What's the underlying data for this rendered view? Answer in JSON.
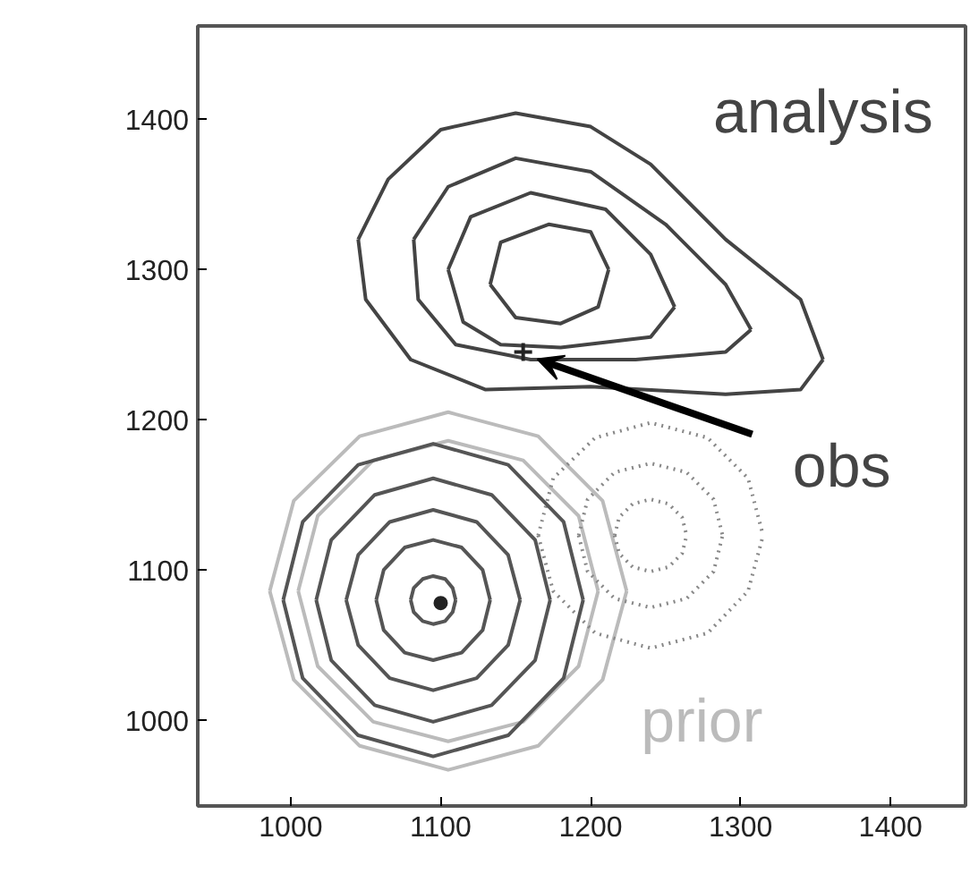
{
  "chart_data": {
    "type": "line",
    "xlim": [
      938,
      1450
    ],
    "ylim": [
      943,
      1462
    ],
    "xticks": [
      1000,
      1100,
      1200,
      1300,
      1400
    ],
    "yticks": [
      1000,
      1100,
      1200,
      1300,
      1400
    ],
    "grid": false,
    "line_style": "solid",
    "series": [
      {
        "name": "analysis",
        "color": "#444444",
        "x": [
          1045,
          1065,
          1100,
          1150,
          1200,
          1240,
          1290,
          1340,
          1355
        ],
        "values": [
          1320,
          1360,
          1393,
          1404,
          1395,
          1370,
          1320,
          1280,
          1240
        ]
      },
      {
        "color": "#444444",
        "x": [
          1045,
          1050,
          1080,
          1130,
          1200,
          1290,
          1340,
          1355
        ],
        "values": [
          1320,
          1280,
          1240,
          1220,
          1222,
          1217,
          1220,
          1240
        ]
      },
      {
        "color": "#444444",
        "x": [
          1082,
          1105,
          1150,
          1200,
          1250,
          1290,
          1307
        ],
        "values": [
          1320,
          1355,
          1374,
          1365,
          1330,
          1290,
          1260
        ]
      },
      {
        "color": "#444444",
        "x": [
          1082,
          1085,
          1110,
          1160,
          1230,
          1290,
          1307
        ],
        "values": [
          1320,
          1280,
          1250,
          1240,
          1240,
          1245,
          1260
        ]
      },
      {
        "color": "#444444",
        "x": [
          1105,
          1120,
          1160,
          1210,
          1240,
          1256
        ],
        "values": [
          1300,
          1335,
          1351,
          1340,
          1310,
          1275
        ]
      },
      {
        "color": "#444444",
        "x": [
          1105,
          1115,
          1140,
          1180,
          1240,
          1256
        ],
        "values": [
          1300,
          1265,
          1250,
          1248,
          1255,
          1275
        ]
      },
      {
        "color": "#444444",
        "x": [
          1133,
          1140,
          1172,
          1200,
          1212
        ],
        "values": [
          1290,
          1318,
          1330,
          1325,
          1300
        ]
      },
      {
        "color": "#444444",
        "x": [
          1133,
          1150,
          1180,
          1205,
          1212
        ],
        "values": [
          1290,
          1268,
          1264,
          1275,
          1300
        ]
      },
      {
        "color": "#bbbbbb",
        "x": [
          986,
          1002,
          1046,
          1105,
          1165,
          1208,
          1224
        ],
        "values": [
          1086,
          1146,
          1189,
          1205,
          1189,
          1146,
          1086
        ]
      },
      {
        "name": "prior",
        "color": "#bbbbbb",
        "x": [
          986,
          1002,
          1046,
          1105,
          1165,
          1208,
          1224
        ],
        "values": [
          1086,
          1027,
          983,
          967,
          983,
          1027,
          1086
        ]
      },
      {
        "color": "#bbbbbb",
        "x": [
          1005,
          1018,
          1055,
          1105,
          1155,
          1192,
          1205
        ],
        "values": [
          1086,
          1136,
          1173,
          1186,
          1173,
          1136,
          1086
        ]
      },
      {
        "color": "#bbbbbb",
        "x": [
          1005,
          1018,
          1055,
          1105,
          1155,
          1192,
          1205
        ],
        "values": [
          1086,
          1036,
          999,
          986,
          999,
          1036,
          1086
        ]
      },
      {
        "color": "#888888",
        "line_style": "dotted",
        "x": [
          1165,
          1175,
          1203,
          1240,
          1278,
          1305,
          1315
        ],
        "values": [
          1123,
          1161,
          1188,
          1198,
          1188,
          1161,
          1123
        ]
      },
      {
        "color": "#888888",
        "line_style": "dotted",
        "x": [
          1165,
          1175,
          1203,
          1240,
          1278,
          1305,
          1315
        ],
        "values": [
          1123,
          1086,
          1058,
          1048,
          1058,
          1086,
          1123
        ]
      },
      {
        "color": "#888888",
        "line_style": "dotted",
        "x": [
          1192,
          1198,
          1216,
          1240,
          1264,
          1282,
          1288
        ],
        "values": [
          1123,
          1147,
          1165,
          1171,
          1165,
          1147,
          1123
        ]
      },
      {
        "color": "#888888",
        "line_style": "dotted",
        "x": [
          1192,
          1198,
          1216,
          1240,
          1264,
          1282,
          1288
        ],
        "values": [
          1123,
          1099,
          1081,
          1075,
          1081,
          1099,
          1123
        ]
      },
      {
        "color": "#888888",
        "line_style": "dotted",
        "x": [
          1216,
          1219,
          1228,
          1240,
          1252,
          1261,
          1264
        ],
        "values": [
          1123,
          1135,
          1144,
          1147,
          1144,
          1135,
          1123
        ]
      },
      {
        "color": "#888888",
        "line_style": "dotted",
        "x": [
          1216,
          1219,
          1228,
          1240,
          1252,
          1261,
          1264
        ],
        "values": [
          1123,
          1111,
          1102,
          1099,
          1102,
          1111,
          1123
        ]
      },
      {
        "color": "#555555",
        "x": [
          995,
          1008,
          1045,
          1095,
          1145,
          1182,
          1195
        ],
        "values": [
          1080,
          1132,
          1170,
          1184,
          1170,
          1132,
          1080
        ]
      },
      {
        "color": "#555555",
        "x": [
          995,
          1008,
          1045,
          1095,
          1145,
          1182,
          1195
        ],
        "values": [
          1080,
          1028,
          990,
          976,
          990,
          1028,
          1080
        ]
      },
      {
        "color": "#555555",
        "x": [
          1017,
          1027,
          1056,
          1095,
          1134,
          1163,
          1173
        ],
        "values": [
          1080,
          1120,
          1150,
          1161,
          1150,
          1120,
          1080
        ]
      },
      {
        "color": "#555555",
        "x": [
          1017,
          1027,
          1056,
          1095,
          1134,
          1163,
          1173
        ],
        "values": [
          1080,
          1040,
          1010,
          999,
          1010,
          1040,
          1080
        ]
      },
      {
        "color": "#555555",
        "x": [
          1037,
          1045,
          1066,
          1095,
          1124,
          1145,
          1153
        ],
        "values": [
          1080,
          1110,
          1132,
          1140,
          1132,
          1110,
          1080
        ]
      },
      {
        "color": "#555555",
        "x": [
          1037,
          1045,
          1066,
          1095,
          1124,
          1145,
          1153
        ],
        "values": [
          1080,
          1050,
          1028,
          1020,
          1028,
          1050,
          1080
        ]
      },
      {
        "color": "#555555",
        "x": [
          1057,
          1062,
          1076,
          1095,
          1114,
          1128,
          1133
        ],
        "values": [
          1080,
          1100,
          1115,
          1120,
          1115,
          1100,
          1080
        ]
      },
      {
        "color": "#555555",
        "x": [
          1057,
          1062,
          1076,
          1095,
          1114,
          1128,
          1133
        ],
        "values": [
          1080,
          1060,
          1045,
          1040,
          1045,
          1060,
          1080
        ]
      },
      {
        "color": "#555555",
        "x": [
          1080,
          1082,
          1088,
          1095,
          1103,
          1108,
          1110
        ],
        "values": [
          1080,
          1088,
          1094,
          1096,
          1094,
          1088,
          1080
        ]
      },
      {
        "color": "#555555",
        "x": [
          1080,
          1082,
          1088,
          1095,
          1103,
          1108,
          1110
        ],
        "values": [
          1080,
          1072,
          1066,
          1064,
          1066,
          1072,
          1080
        ]
      },
      {
        "type": "scatter",
        "marker": "circle",
        "color": "#222222",
        "x": [
          1100
        ],
        "values": [
          1078
        ]
      },
      {
        "type": "scatter",
        "marker": "cross",
        "name": "obs",
        "color": "#222222",
        "x": [
          1155
        ],
        "values": [
          1245
        ]
      }
    ]
  }
}
